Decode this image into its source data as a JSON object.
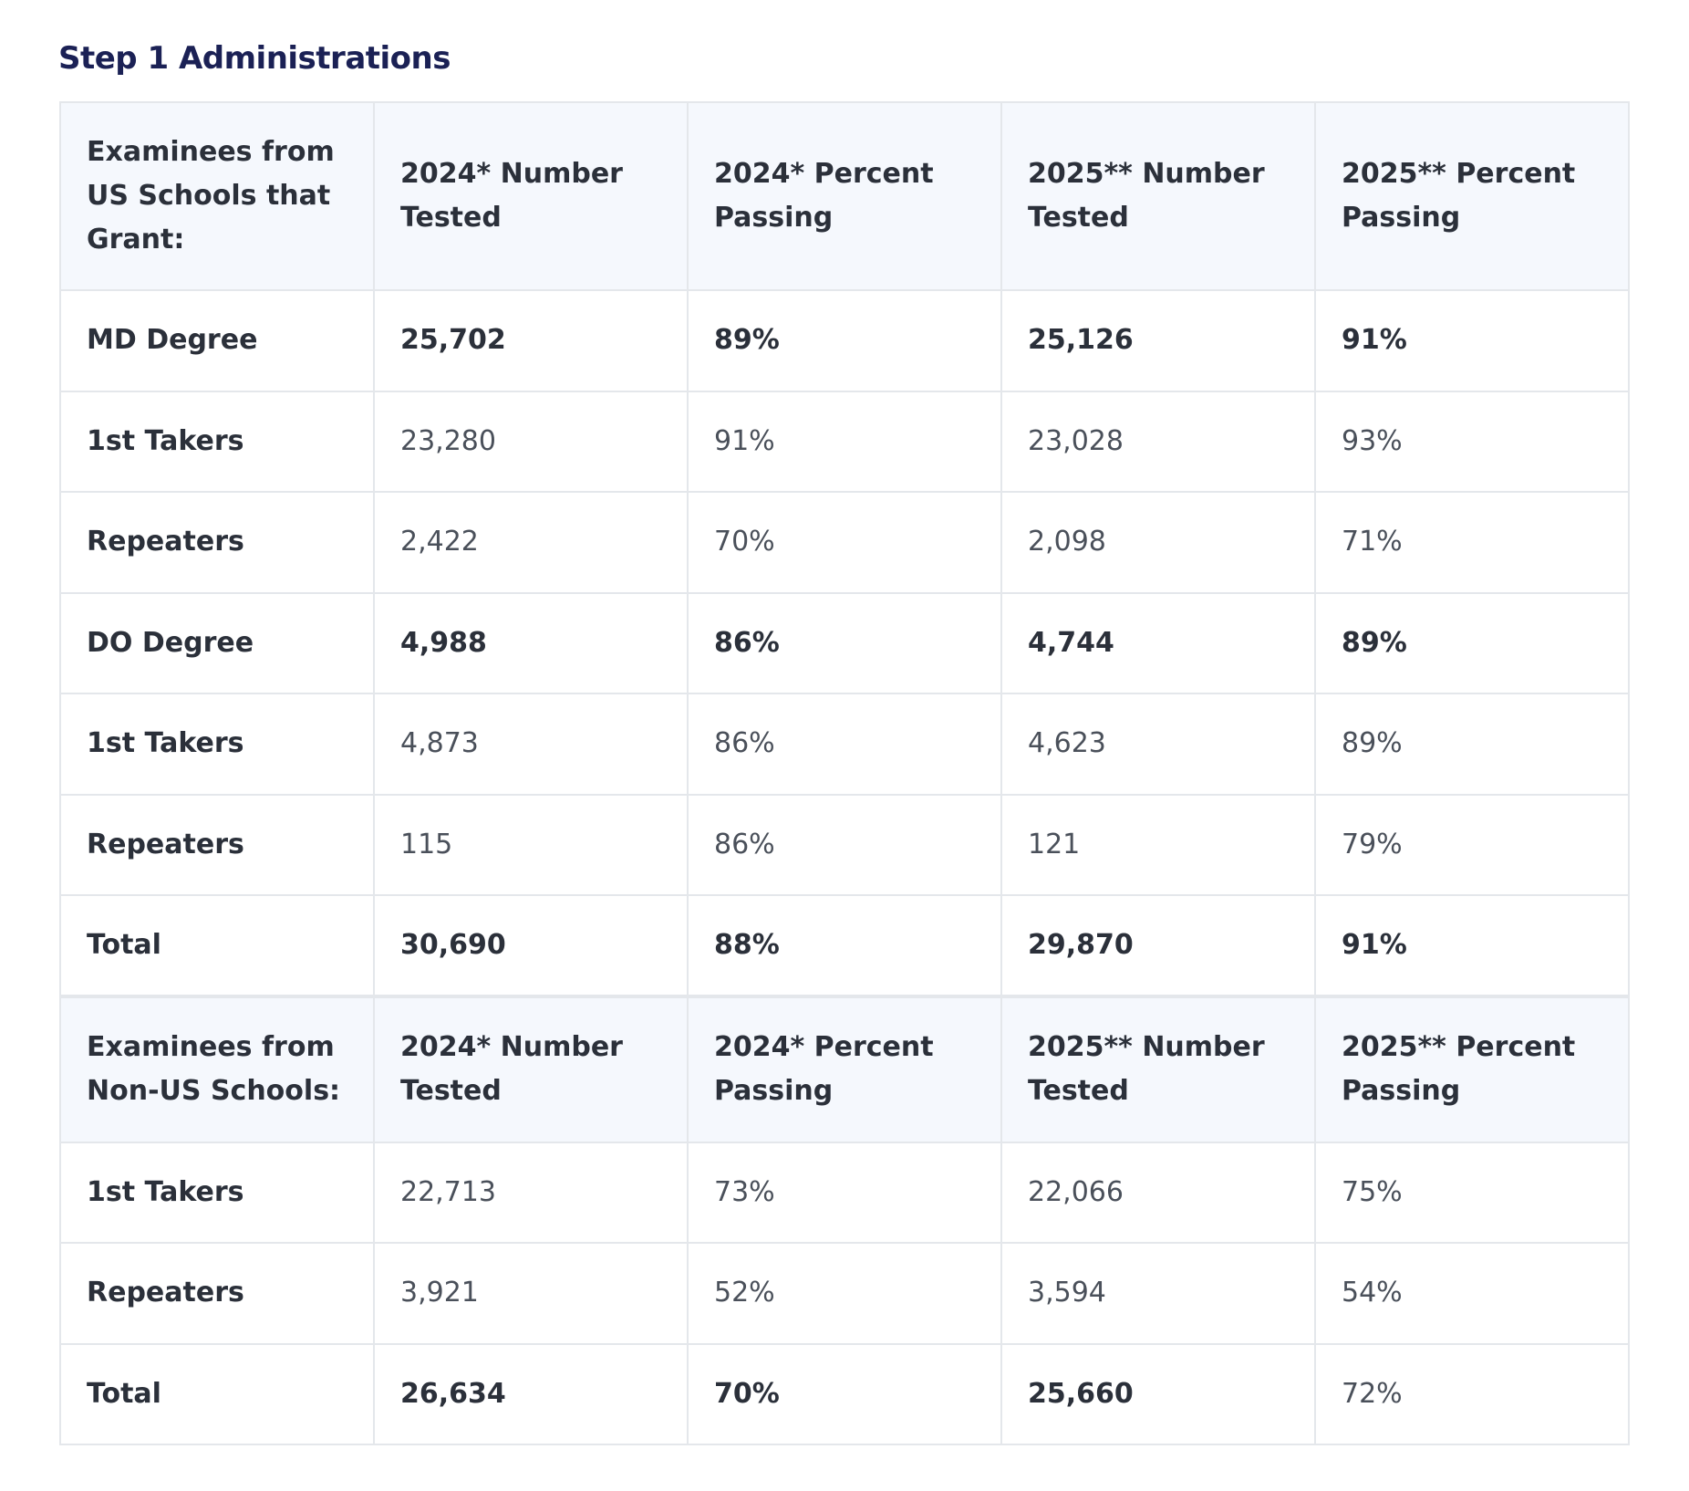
{
  "title": "Step 1 Administrations",
  "table": {
    "sections": [
      {
        "header": [
          "Examinees from US Schools that Grant:",
          "2024* Number Tested",
          "2024* Percent Passing",
          "2025** Number Tested",
          "2025** Percent Passing"
        ],
        "rows": [
          [
            "MD Degree",
            "25,702",
            "89%",
            "25,126",
            "91%"
          ],
          [
            "1st Takers",
            "23,280",
            "91%",
            "23,028",
            "93%"
          ],
          [
            "Repeaters",
            "2,422",
            "70%",
            "2,098",
            "71%"
          ],
          [
            "DO Degree",
            "4,988",
            "86%",
            "4,744",
            "89%"
          ],
          [
            "1st Takers",
            "4,873",
            "86%",
            "4,623",
            "89%"
          ],
          [
            "Repeaters",
            "115",
            "86%",
            "121",
            "79%"
          ],
          [
            "Total",
            "30,690",
            "88%",
            "29,870",
            "91%"
          ]
        ]
      },
      {
        "header": [
          "Examinees from Non-US Schools:",
          "2024* Number Tested",
          "2024* Percent Passing",
          "2025** Number Tested",
          "2025** Percent Passing"
        ],
        "rows": [
          [
            "1st Takers",
            "22,713",
            "73%",
            "22,066",
            "75%"
          ],
          [
            "Repeaters",
            "3,921",
            "52%",
            "3,594",
            "54%"
          ],
          [
            "Total",
            "26,634",
            "70%",
            "25,660",
            "72%"
          ]
        ]
      }
    ]
  }
}
